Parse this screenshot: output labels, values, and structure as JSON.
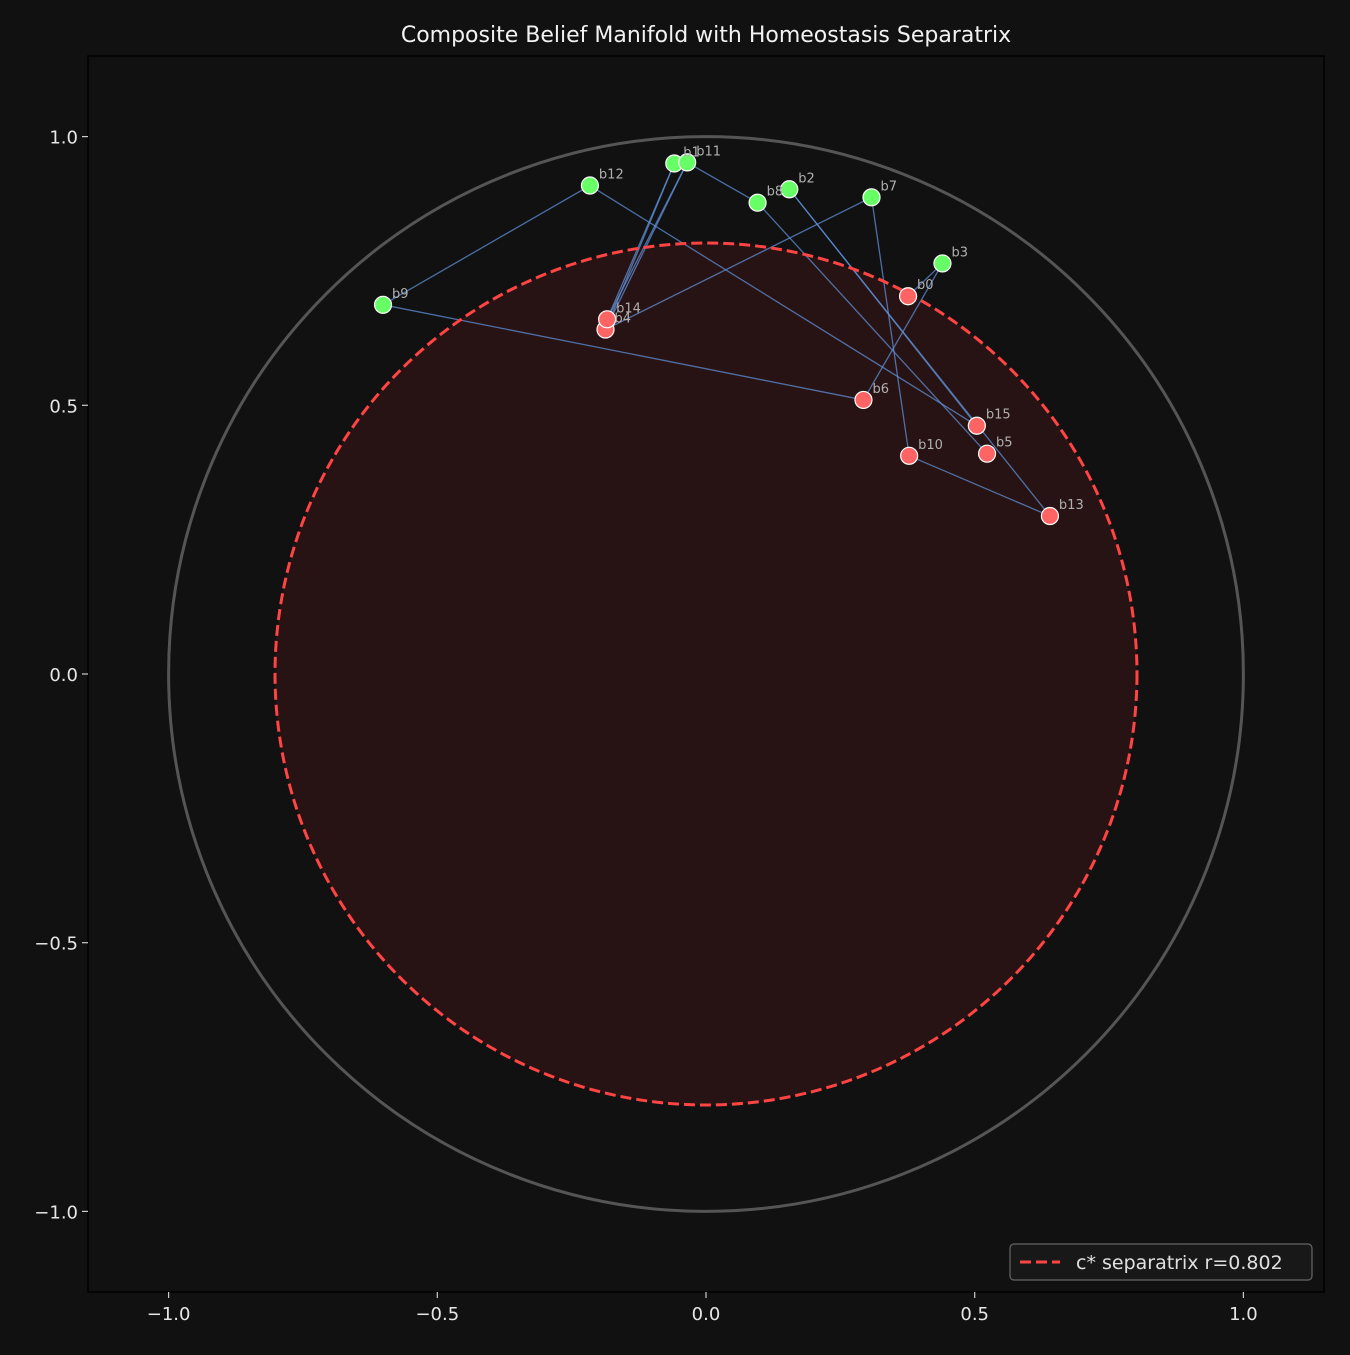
{
  "chart_data": {
    "type": "scatter",
    "title": "Composite Belief Manifold with Homeostasis Separatrix",
    "xlabel": "",
    "ylabel": "",
    "xlim": [
      -1.15,
      1.15
    ],
    "ylim": [
      -1.15,
      1.15
    ],
    "x_ticks": [
      -1.0,
      -0.5,
      0.0,
      0.5,
      1.0
    ],
    "y_ticks": [
      -1.0,
      -0.5,
      0.0,
      0.5,
      1.0
    ],
    "x_tick_labels": [
      "−1.0",
      "−0.5",
      "0.0",
      "0.5",
      "1.0"
    ],
    "y_tick_labels": [
      "−1.0",
      "−0.5",
      "0.0",
      "0.5",
      "1.0"
    ],
    "grid": false,
    "unit_circle_radius": 1.0,
    "separatrix": {
      "radius": 0.802,
      "legend_label": "c* separatrix r=0.802",
      "color": "#ff4444",
      "fill_color": "#3a1515"
    },
    "legend_position": "lower-right",
    "colors": {
      "background": "#111111",
      "inside": "#ff6464",
      "outside": "#66ff66",
      "edge": "#5f8fd6",
      "unit_circle": "#555555",
      "axes": "#000000"
    },
    "points": [
      {
        "name": "b0",
        "x": 0.376,
        "y": 0.703,
        "region": "inside"
      },
      {
        "name": "b1",
        "x": -0.059,
        "y": 0.95,
        "region": "outside"
      },
      {
        "name": "b2",
        "x": 0.155,
        "y": 0.902,
        "region": "outside"
      },
      {
        "name": "b3",
        "x": 0.44,
        "y": 0.764,
        "region": "outside"
      },
      {
        "name": "b4",
        "x": -0.187,
        "y": 0.641,
        "region": "inside"
      },
      {
        "name": "b5",
        "x": 0.523,
        "y": 0.41,
        "region": "inside"
      },
      {
        "name": "b6",
        "x": 0.293,
        "y": 0.51,
        "region": "inside"
      },
      {
        "name": "b7",
        "x": 0.308,
        "y": 0.887,
        "region": "outside"
      },
      {
        "name": "b8",
        "x": 0.096,
        "y": 0.877,
        "region": "outside"
      },
      {
        "name": "b9",
        "x": -0.601,
        "y": 0.687,
        "region": "outside"
      },
      {
        "name": "b10",
        "x": 0.378,
        "y": 0.406,
        "region": "inside"
      },
      {
        "name": "b11",
        "x": -0.035,
        "y": 0.952,
        "region": "outside"
      },
      {
        "name": "b12",
        "x": -0.216,
        "y": 0.909,
        "region": "outside"
      },
      {
        "name": "b13",
        "x": 0.64,
        "y": 0.294,
        "region": "inside"
      },
      {
        "name": "b14",
        "x": -0.184,
        "y": 0.66,
        "region": "inside"
      },
      {
        "name": "b15",
        "x": 0.504,
        "y": 0.462,
        "region": "inside"
      }
    ],
    "edges": [
      [
        "b9",
        "b12"
      ],
      [
        "b12",
        "b15"
      ],
      [
        "b9",
        "b6"
      ],
      [
        "b1",
        "b4"
      ],
      [
        "b1",
        "b14"
      ],
      [
        "b11",
        "b4"
      ],
      [
        "b11",
        "b14"
      ],
      [
        "b11",
        "b8"
      ],
      [
        "b8",
        "b5"
      ],
      [
        "b2",
        "b15"
      ],
      [
        "b2",
        "b13"
      ],
      [
        "b7",
        "b4"
      ],
      [
        "b7",
        "b10"
      ],
      [
        "b10",
        "b13"
      ],
      [
        "b3",
        "b6"
      ],
      [
        "b3",
        "b0"
      ]
    ]
  }
}
